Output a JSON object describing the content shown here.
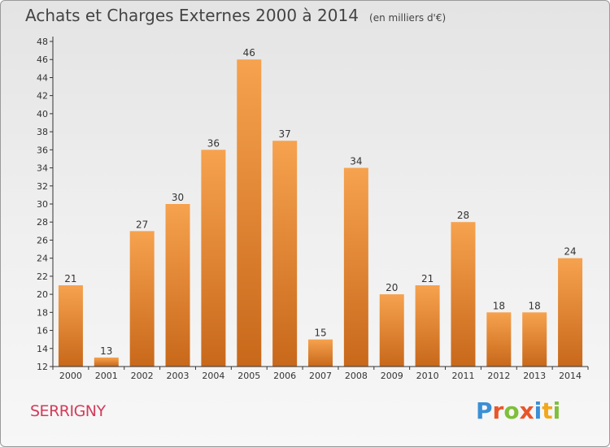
{
  "header": {
    "title": "Achats et Charges Externes 2000 à 2014",
    "subtitle": "(en milliers d'€)"
  },
  "footer": {
    "commune": "SERRIGNY",
    "logo_text": "Proxiti",
    "logo_colors": [
      "#3b8fd6",
      "#e8562a",
      "#7fbf3a",
      "#e8562a",
      "#3b8fd6",
      "#f2a71c",
      "#7fbf3a"
    ]
  },
  "chart_data": {
    "type": "bar",
    "title": "Achats et Charges Externes 2000 à 2014",
    "categories": [
      "2000",
      "2001",
      "2002",
      "2003",
      "2004",
      "2005",
      "2006",
      "2007",
      "2008",
      "2009",
      "2010",
      "2011",
      "2012",
      "2013",
      "2014"
    ],
    "values": [
      21,
      13,
      27,
      30,
      36,
      46,
      37,
      15,
      34,
      20,
      21,
      28,
      18,
      18,
      24
    ],
    "ylim": [
      12,
      48
    ],
    "yticks": [
      12,
      14,
      16,
      18,
      20,
      22,
      24,
      26,
      28,
      30,
      32,
      34,
      36,
      38,
      40,
      42,
      44,
      46,
      48
    ],
    "grid": false,
    "bar_color_top": "#f6a24e",
    "bar_color_bottom": "#c8681a",
    "axis_color": "#333333"
  }
}
